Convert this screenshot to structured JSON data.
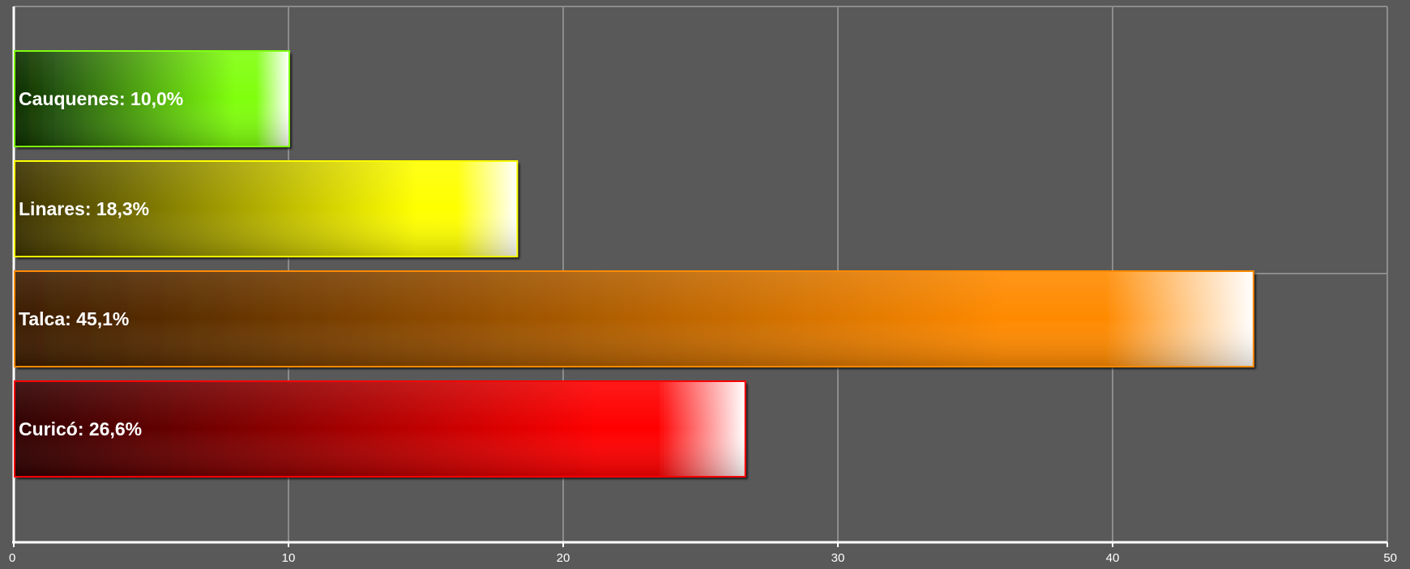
{
  "chart_data": {
    "type": "bar",
    "orientation": "horizontal",
    "categories": [
      "Cauquenes",
      "Linares",
      "Talca",
      "Curicó"
    ],
    "values": [
      10.0,
      18.3,
      45.1,
      26.6
    ],
    "bar_labels": [
      "Cauquenes: 10,0%",
      "Linares: 18,3%",
      "Talca: 45,1%",
      "Curicó: 26,6%"
    ],
    "colors": [
      "#80ff10",
      "#ffff00",
      "#ff8a00",
      "#ff0000"
    ],
    "dark_colors": [
      "#0a2a05",
      "#3a3000",
      "#3a1c05",
      "#2e0000"
    ],
    "xlim": [
      0,
      50
    ],
    "x_ticks": [
      0,
      10,
      20,
      30,
      40,
      50
    ],
    "x_tick_labels": [
      "0",
      "10",
      "20",
      "30",
      "40",
      "50"
    ],
    "grid": true,
    "title": "",
    "xlabel": "",
    "ylabel": "",
    "background_color": "#595959",
    "grid_color": "#8c8c8c",
    "axis_color": "#ffffff"
  }
}
